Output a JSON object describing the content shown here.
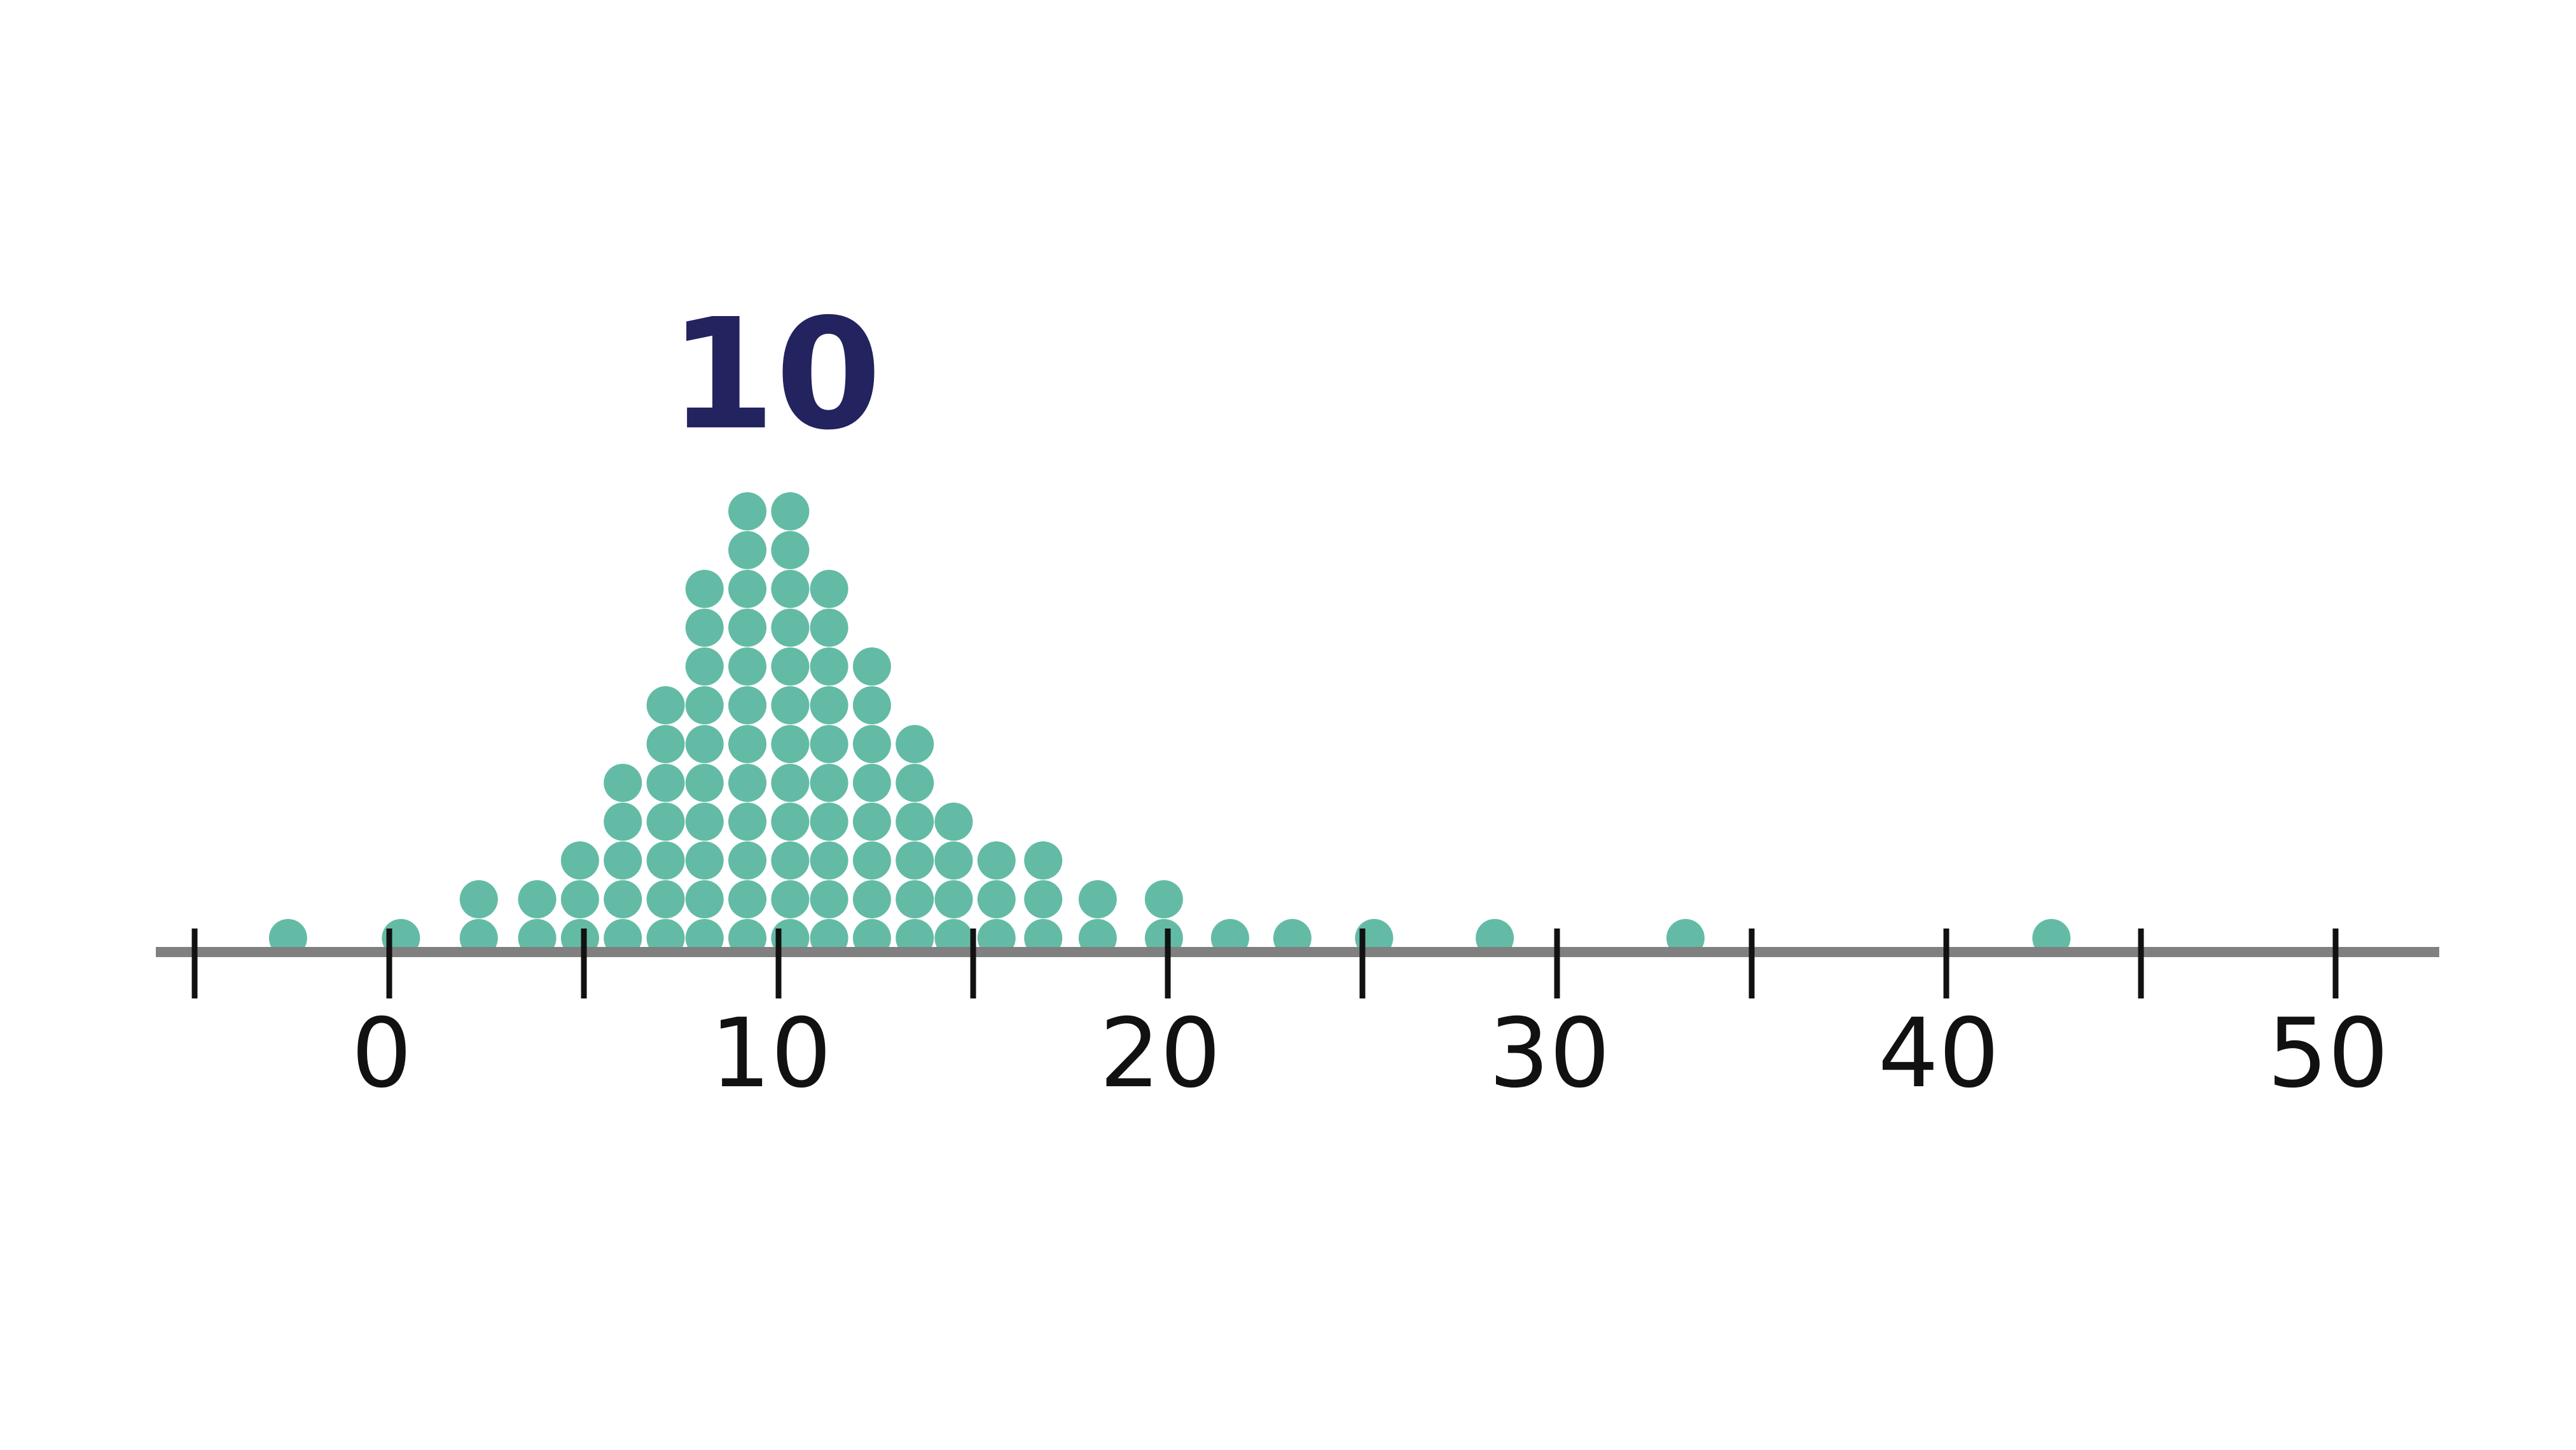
{
  "chart_data": {
    "type": "scatter",
    "subtype": "dot-plot",
    "title": "",
    "xlabel": "",
    "ylabel": "",
    "xlim": [
      -5,
      52
    ],
    "xticks_major": [
      0,
      10,
      20,
      30,
      40,
      50
    ],
    "xticks_minor": [
      -5,
      5,
      15,
      25,
      35,
      45
    ],
    "tick_labels": [
      "0",
      "10",
      "20",
      "30",
      "40",
      "50"
    ],
    "grid": false,
    "legend": "none",
    "annotation": {
      "text": "10",
      "at_x": 10
    },
    "columns": [
      {
        "x": -2.6,
        "count": 1
      },
      {
        "x": 0.3,
        "count": 1
      },
      {
        "x": 2.3,
        "count": 2
      },
      {
        "x": 3.8,
        "count": 2
      },
      {
        "x": 4.9,
        "count": 3
      },
      {
        "x": 6.0,
        "count": 5
      },
      {
        "x": 7.1,
        "count": 7
      },
      {
        "x": 8.1,
        "count": 10
      },
      {
        "x": 9.2,
        "count": 12
      },
      {
        "x": 10.3,
        "count": 12
      },
      {
        "x": 11.3,
        "count": 10
      },
      {
        "x": 12.4,
        "count": 8
      },
      {
        "x": 13.5,
        "count": 6
      },
      {
        "x": 14.5,
        "count": 4
      },
      {
        "x": 15.6,
        "count": 3
      },
      {
        "x": 16.8,
        "count": 3
      },
      {
        "x": 18.2,
        "count": 2
      },
      {
        "x": 19.9,
        "count": 2
      },
      {
        "x": 21.6,
        "count": 1
      },
      {
        "x": 23.2,
        "count": 1
      },
      {
        "x": 25.3,
        "count": 1
      },
      {
        "x": 28.4,
        "count": 1
      },
      {
        "x": 33.3,
        "count": 1
      },
      {
        "x": 42.7,
        "count": 1
      }
    ],
    "colors": {
      "dot": "#63bba6",
      "axis": "#808080",
      "tick": "#111111",
      "annotation": "#23235f"
    }
  }
}
